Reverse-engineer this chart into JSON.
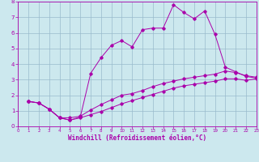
{
  "xlabel": "Windchill (Refroidissement éolien,°C)",
  "xlim": [
    0,
    23
  ],
  "ylim": [
    0,
    8
  ],
  "xticks": [
    0,
    1,
    2,
    3,
    4,
    5,
    6,
    7,
    8,
    9,
    10,
    11,
    12,
    13,
    14,
    15,
    16,
    17,
    18,
    19,
    20,
    21,
    22,
    23
  ],
  "yticks": [
    0,
    1,
    2,
    3,
    4,
    5,
    6,
    7,
    8
  ],
  "bg_color": "#cce8ee",
  "line_color": "#aa00aa",
  "grid_color": "#99bbcc",
  "line1_x": [
    1,
    2,
    3,
    4,
    5,
    6,
    7,
    8,
    9,
    10,
    11,
    12,
    13,
    14,
    15,
    16,
    17,
    18,
    19,
    20,
    21,
    22,
    23
  ],
  "line1_y": [
    1.6,
    1.5,
    1.1,
    0.55,
    0.4,
    0.6,
    3.4,
    4.4,
    5.2,
    5.5,
    5.1,
    6.2,
    6.3,
    6.3,
    7.8,
    7.3,
    6.9,
    7.4,
    5.9,
    3.8,
    3.5,
    3.2,
    3.1
  ],
  "line2_x": [
    1,
    2,
    3,
    4,
    5,
    6,
    7,
    8,
    9,
    10,
    11,
    12,
    13,
    14,
    15,
    16,
    17,
    18,
    19,
    20,
    21,
    22,
    23
  ],
  "line2_y": [
    1.6,
    1.5,
    1.1,
    0.55,
    0.55,
    0.65,
    1.05,
    1.4,
    1.7,
    2.0,
    2.1,
    2.3,
    2.55,
    2.75,
    2.9,
    3.05,
    3.15,
    3.25,
    3.35,
    3.55,
    3.45,
    3.25,
    3.15
  ],
  "line3_x": [
    1,
    2,
    3,
    4,
    5,
    6,
    7,
    8,
    9,
    10,
    11,
    12,
    13,
    14,
    15,
    16,
    17,
    18,
    19,
    20,
    21,
    22,
    23
  ],
  "line3_y": [
    1.6,
    1.5,
    1.1,
    0.55,
    0.4,
    0.55,
    0.75,
    0.95,
    1.2,
    1.45,
    1.65,
    1.85,
    2.05,
    2.25,
    2.45,
    2.6,
    2.7,
    2.8,
    2.9,
    3.05,
    3.05,
    2.95,
    3.05
  ],
  "tick_fontsize_x": 4.0,
  "tick_fontsize_y": 5.0,
  "xlabel_fontsize": 5.5,
  "marker_size": 1.8,
  "linewidth": 0.7
}
